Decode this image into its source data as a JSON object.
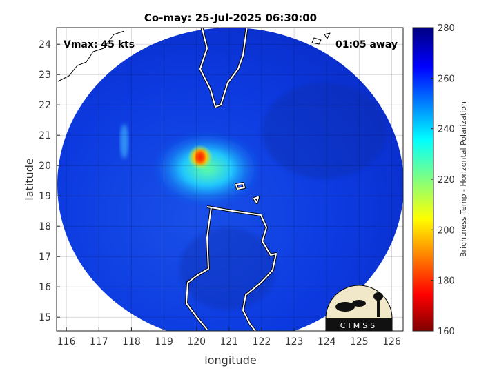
{
  "title": "Co-may: 25-Jul-2025 06:30:00",
  "annotations": {
    "vmax": "Vmax: 45 kts",
    "time_away": "01:05 away"
  },
  "logo": {
    "text": "CIMSS"
  },
  "chart_data": {
    "type": "heatmap",
    "title": "Co-may: 25-Jul-2025 06:30:00",
    "xlabel": "longitude",
    "ylabel": "latitude",
    "xlim": [
      115.7,
      126.35
    ],
    "ylim": [
      14.55,
      24.55
    ],
    "xticks": [
      "116",
      "117",
      "118",
      "119",
      "120",
      "121",
      "122",
      "123",
      "124",
      "125",
      "126"
    ],
    "yticks": [
      "15",
      "16",
      "17",
      "18",
      "19",
      "20",
      "21",
      "22",
      "23",
      "24"
    ],
    "grid": true,
    "colorbar": {
      "label": "Brightness Temp - Horizontal Polarization",
      "range": [
        160,
        280
      ],
      "ticks": [
        "160",
        "180",
        "200",
        "220",
        "240",
        "260",
        "280"
      ],
      "colormap": "jet"
    },
    "features": {
      "background_brightness_temp_approx": 268,
      "storm_center_approx": {
        "lon": 120.3,
        "lat": 20.2,
        "min_temp_approx": 185
      }
    }
  }
}
